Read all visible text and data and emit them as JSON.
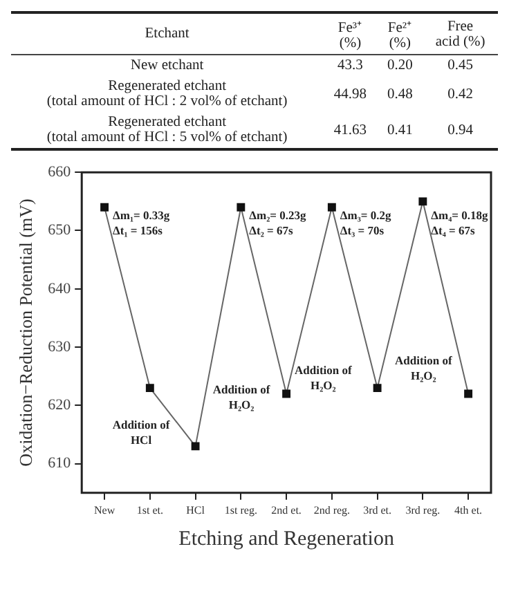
{
  "chart_data": [
    {
      "type": "heatmap",
      "ylabel": "Etchant",
      "categories": [
        "Fe³⁺ (%)",
        "Fe²⁺ (%)",
        "Free acid (%)"
      ],
      "y_categories": [
        "New etchant",
        "Regenerated etchant\n(total amount of HCl : 2 vol% of etchant)",
        "Regenerated etchant\n(total amount of HCl : 5 vol% of etchant)"
      ],
      "cells": [
        [
          43.3,
          0.2,
          0.45
        ],
        [
          44.98,
          0.48,
          0.42
        ],
        [
          41.63,
          0.41,
          0.94
        ]
      ],
      "cell_labels": [
        [
          "43.3",
          "0.20",
          "0.45"
        ],
        [
          "44.98",
          "0.48",
          "0.42"
        ],
        [
          "41.63",
          "0.41",
          "0.94"
        ]
      ],
      "data_labels": true
    },
    {
      "type": "line",
      "xlabel": "Etching and Regeneration",
      "ylabel": "Oxidation−Reduction Potential (mV)",
      "categories": [
        "New",
        "1st et.",
        "HCl",
        "1st reg.",
        "2nd et.",
        "2nd reg.",
        "3rd et.",
        "3rd reg.",
        "4th et."
      ],
      "series": [
        {
          "color": "#111111",
          "values": [
            654,
            623,
            613,
            654,
            622,
            654,
            623,
            655,
            622
          ]
        }
      ],
      "ylim": [
        605,
        660
      ],
      "yticks": [
        610,
        620,
        630,
        640,
        650,
        660
      ],
      "grid": false,
      "legend": false,
      "marker": "square",
      "line_style": "solid",
      "annotations": [
        {
          "text": "Δm₁= 0.33g\nΔt₁ = 156s",
          "x": "New",
          "y": 652
        },
        {
          "text": "Δm₂= 0.23g\nΔt₂ = 67s",
          "x": "1st reg.",
          "y": 652
        },
        {
          "text": "Δm₃= 0.2g\nΔt₃ = 70s",
          "x": "2nd reg.",
          "y": 652
        },
        {
          "text": "Δm₄= 0.18g\nΔt₄ = 67s",
          "x": "3rd reg.",
          "y": 652
        },
        "Addition of\nHCl",
        "Addition of\nH₂O₂",
        "Addition of\nH₂O₂",
        "Addition of\nH₂O₂"
      ]
    }
  ]
}
